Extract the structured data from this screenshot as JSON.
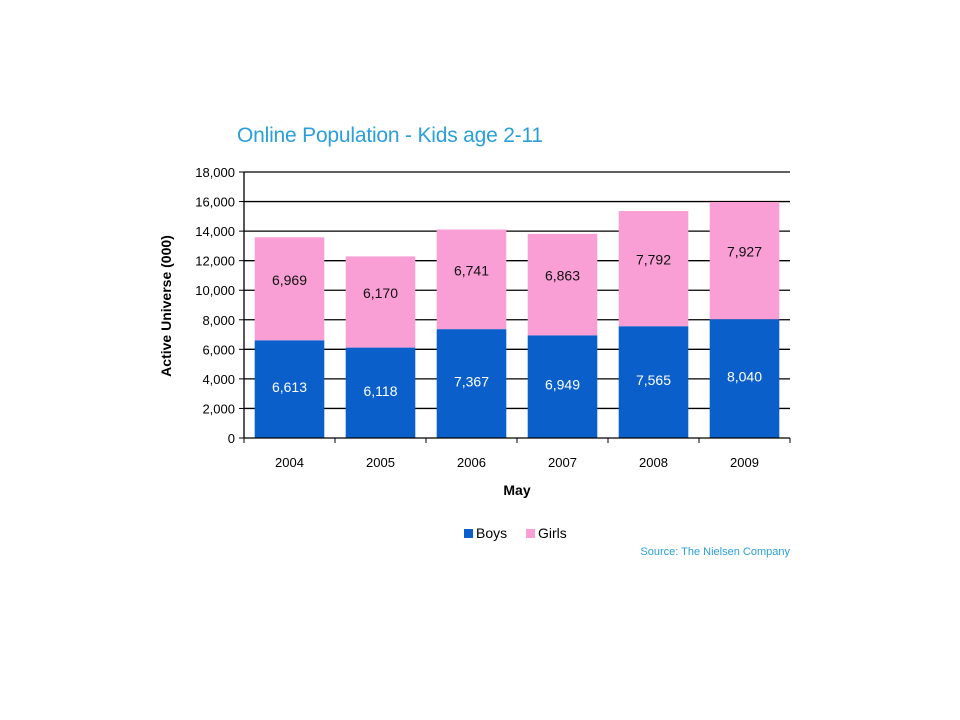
{
  "chart_data": {
    "type": "bar",
    "stacked": true,
    "title": "Online Population - Kids age 2-11",
    "xlabel": "May",
    "ylabel": "Active Universe (000)",
    "categories": [
      "2004",
      "2005",
      "2006",
      "2007",
      "2008",
      "2009"
    ],
    "series": [
      {
        "name": "Boys",
        "color": "#0a5fcb",
        "values": [
          6613,
          6118,
          7367,
          6949,
          7565,
          8040
        ],
        "labels": [
          "6,613",
          "6,118",
          "7,367",
          "6,949",
          "7,565",
          "8,040"
        ]
      },
      {
        "name": "Girls",
        "color": "#f99fd5",
        "values": [
          6969,
          6170,
          6741,
          6863,
          7792,
          7927
        ],
        "labels": [
          "6,969",
          "6,170",
          "6,741",
          "6,863",
          "7,792",
          "7,927"
        ]
      }
    ],
    "ylim": [
      0,
      18000
    ],
    "yticks": [
      0,
      2000,
      4000,
      6000,
      8000,
      10000,
      12000,
      14000,
      16000,
      18000
    ],
    "ytick_labels": [
      "0",
      "2,000",
      "4,000",
      "6,000",
      "8,000",
      "10,000",
      "12,000",
      "14,000",
      "16,000",
      "18,000"
    ],
    "grid": true,
    "legend_position": "bottom",
    "source": "Source: The Nielsen Company"
  }
}
